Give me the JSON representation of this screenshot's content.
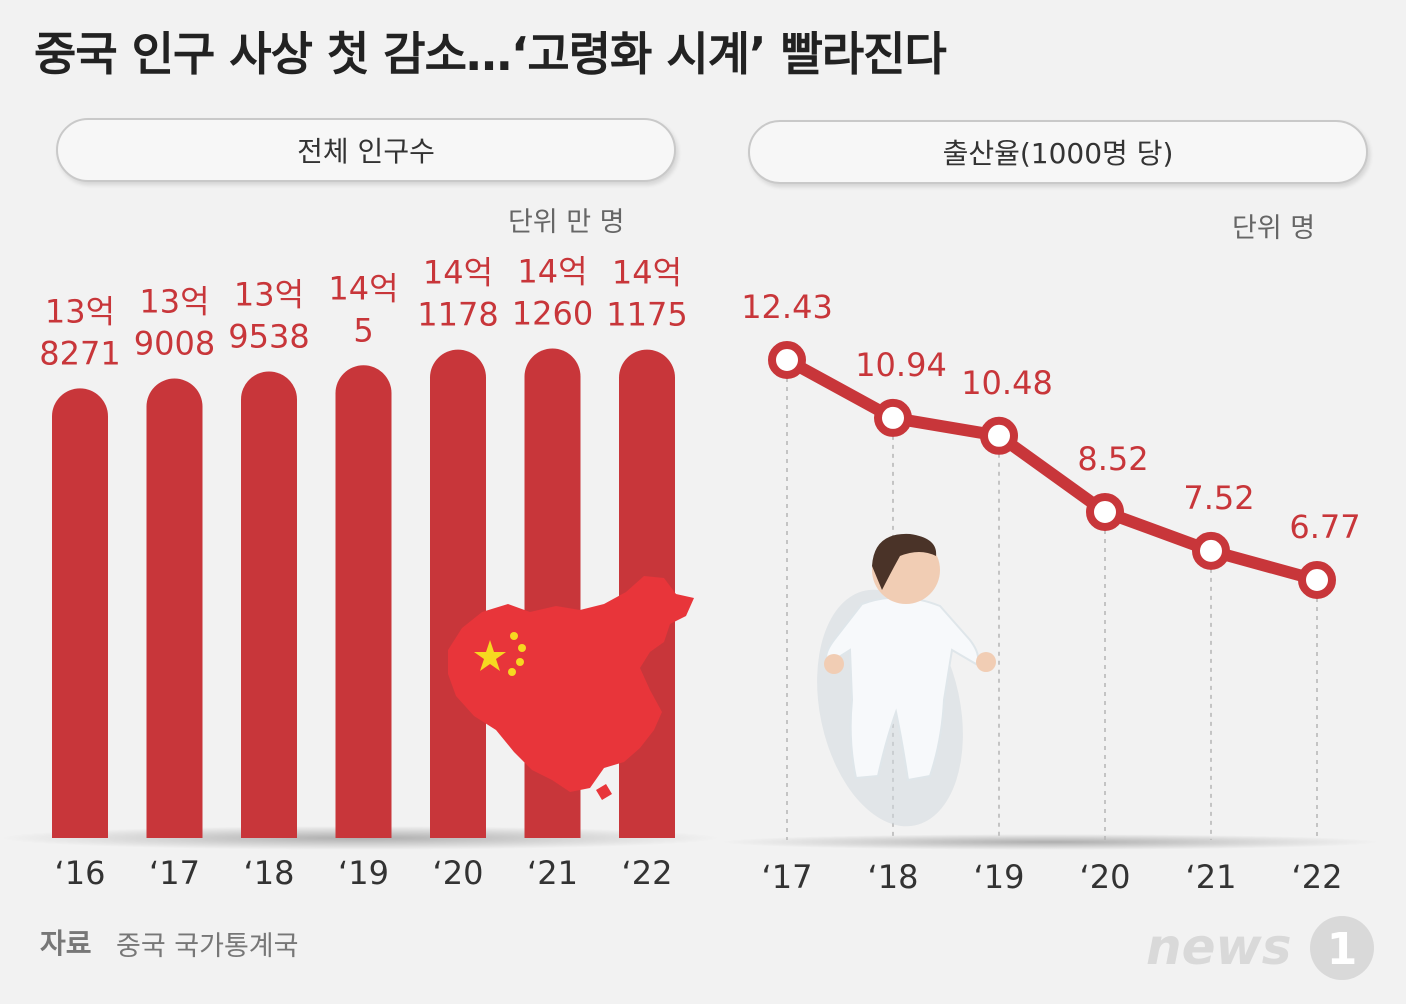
{
  "title": "중국 인구 사상 첫 감소…‘고령화 시계’ 빨라진다",
  "panels": {
    "population": {
      "heading": "전체 인구수",
      "unit": "단위 만 명"
    },
    "birth": {
      "heading": "출산율(1000명 당)",
      "unit": "단위 명"
    }
  },
  "source": {
    "label": "자료",
    "text": "중국 국가통계국"
  },
  "logo": {
    "text": "news",
    "mark": "1"
  },
  "chart_data": [
    {
      "type": "bar",
      "categories": [
        "‘16",
        "‘17",
        "‘18",
        "‘19",
        "‘20",
        "‘21",
        "‘22"
      ],
      "values": [
        138271,
        139008,
        139538,
        140005,
        141178,
        141260,
        141175
      ],
      "value_labels": [
        [
          "13억",
          "8271"
        ],
        [
          "13억",
          "9008"
        ],
        [
          "13억",
          "9538"
        ],
        [
          "14억",
          "5"
        ],
        [
          "14억",
          "1178"
        ],
        [
          "14억",
          "1260"
        ],
        [
          "14억",
          "1175"
        ]
      ],
      "color": "#c8363a",
      "title": "전체 인구수",
      "ylabel": "단위 만 명"
    },
    {
      "type": "line",
      "categories": [
        "‘17",
        "‘18",
        "‘19",
        "‘20",
        "‘21",
        "‘22"
      ],
      "values": [
        12.43,
        10.94,
        10.48,
        8.52,
        7.52,
        6.77
      ],
      "value_labels": [
        "12.43",
        "10.94",
        "10.48",
        "8.52",
        "7.52",
        "6.77"
      ],
      "color": "#c8363a",
      "title": "출산율(1000명 당)",
      "ylabel": "단위 명"
    }
  ]
}
